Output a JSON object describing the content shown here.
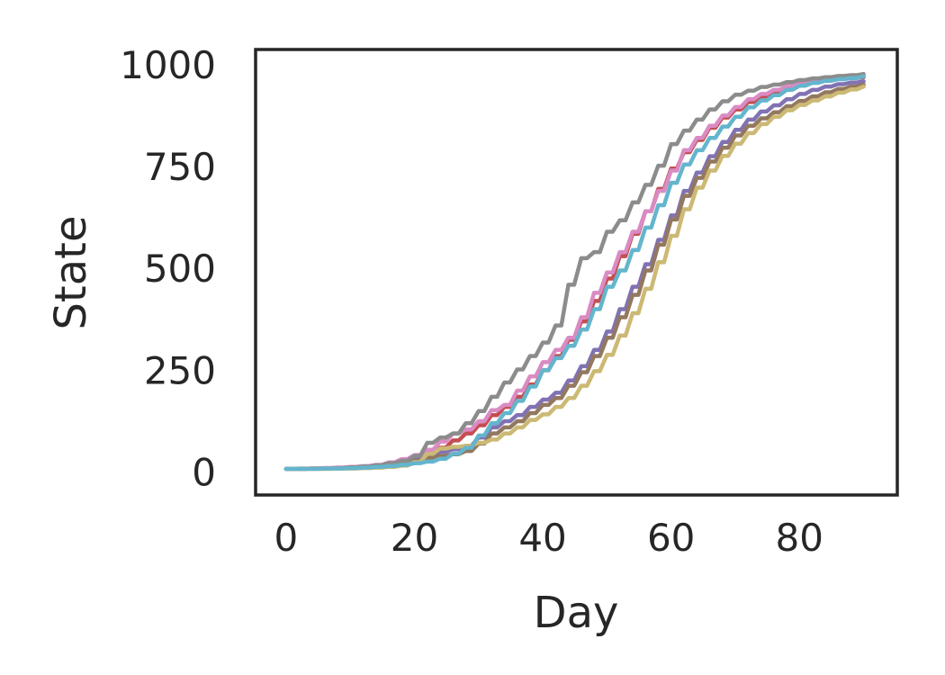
{
  "figure": {
    "background_color": "#ffffff",
    "axis_text_color": "#262626",
    "spine_color": "#262626"
  },
  "chart_data": {
    "type": "line",
    "title": "",
    "xlabel": "Day",
    "ylabel": "State",
    "x_ticks": [
      0,
      20,
      40,
      60,
      80
    ],
    "y_ticks": [
      0,
      250,
      500,
      750,
      1000
    ],
    "xlim": [
      -4.75,
      95.25
    ],
    "ylim": [
      -56,
      1037
    ],
    "grid": false,
    "legend_position": "none",
    "line_width": 4.5,
    "days": [
      0,
      2,
      4,
      6,
      8,
      10,
      12,
      14,
      16,
      18,
      20,
      22,
      24,
      26,
      28,
      30,
      32,
      34,
      36,
      38,
      40,
      42,
      44,
      46,
      48,
      50,
      52,
      54,
      56,
      58,
      60,
      62,
      64,
      66,
      68,
      70,
      72,
      74,
      76,
      78,
      80,
      82,
      84,
      86,
      88,
      90
    ],
    "series": [
      {
        "name": "red",
        "color": "#c44e52",
        "values": [
          8,
          8,
          9,
          9,
          10,
          12,
          14,
          17,
          21,
          27,
          35,
          45,
          60,
          78,
          95,
          115,
          140,
          160,
          185,
          215,
          250,
          285,
          325,
          370,
          420,
          475,
          530,
          585,
          640,
          695,
          745,
          785,
          815,
          845,
          870,
          890,
          908,
          922,
          934,
          944,
          952,
          958,
          962,
          965,
          967,
          969
        ]
      },
      {
        "name": "purple",
        "color": "#8172b3",
        "values": [
          8,
          9,
          9,
          10,
          11,
          12,
          14,
          17,
          21,
          26,
          33,
          42,
          50,
          56,
          65,
          85,
          110,
          125,
          140,
          160,
          178,
          195,
          225,
          260,
          300,
          345,
          400,
          455,
          510,
          570,
          630,
          690,
          735,
          775,
          810,
          840,
          865,
          885,
          900,
          915,
          928,
          938,
          946,
          952,
          956,
          959
        ]
      },
      {
        "name": "brown",
        "color": "#937860",
        "values": [
          8,
          8,
          9,
          9,
          10,
          11,
          13,
          15,
          18,
          22,
          28,
          35,
          40,
          44,
          52,
          70,
          95,
          110,
          125,
          145,
          165,
          182,
          212,
          245,
          285,
          330,
          380,
          435,
          495,
          558,
          620,
          678,
          722,
          762,
          796,
          826,
          850,
          868,
          883,
          898,
          911,
          922,
          932,
          940,
          946,
          951
        ]
      },
      {
        "name": "pink",
        "color": "#da8bc3",
        "values": [
          8,
          8,
          9,
          10,
          11,
          13,
          15,
          18,
          24,
          32,
          42,
          55,
          75,
          95,
          105,
          125,
          152,
          165,
          200,
          235,
          270,
          300,
          330,
          380,
          440,
          490,
          540,
          590,
          640,
          690,
          740,
          790,
          820,
          850,
          875,
          896,
          915,
          928,
          938,
          948,
          955,
          960,
          964,
          968,
          971,
          974
        ]
      },
      {
        "name": "gray",
        "color": "#8c8c8c",
        "values": [
          8,
          8,
          9,
          9,
          10,
          12,
          14,
          17,
          22,
          28,
          40,
          72,
          85,
          95,
          120,
          150,
          185,
          220,
          252,
          285,
          318,
          360,
          460,
          525,
          540,
          590,
          618,
          662,
          705,
          752,
          805,
          838,
          865,
          890,
          910,
          926,
          936,
          945,
          951,
          957,
          962,
          966,
          969,
          972,
          974,
          977
        ]
      },
      {
        "name": "khaki",
        "color": "#ccb974",
        "values": [
          8,
          8,
          8,
          8,
          9,
          9,
          10,
          11,
          13,
          16,
          25,
          45,
          58,
          62,
          65,
          72,
          80,
          95,
          110,
          128,
          142,
          160,
          182,
          212,
          248,
          288,
          335,
          390,
          450,
          515,
          580,
          645,
          698,
          740,
          776,
          806,
          832,
          854,
          872,
          888,
          901,
          912,
          922,
          931,
          939,
          946
        ]
      },
      {
        "name": "cyan",
        "color": "#64b5cd",
        "values": [
          8,
          8,
          8,
          9,
          9,
          10,
          11,
          13,
          15,
          18,
          22,
          26,
          33,
          45,
          60,
          90,
          120,
          145,
          175,
          210,
          250,
          280,
          310,
          350,
          400,
          455,
          495,
          545,
          600,
          655,
          710,
          755,
          790,
          820,
          848,
          872,
          895,
          912,
          925,
          938,
          948,
          955,
          960,
          964,
          967,
          971
        ]
      }
    ]
  }
}
